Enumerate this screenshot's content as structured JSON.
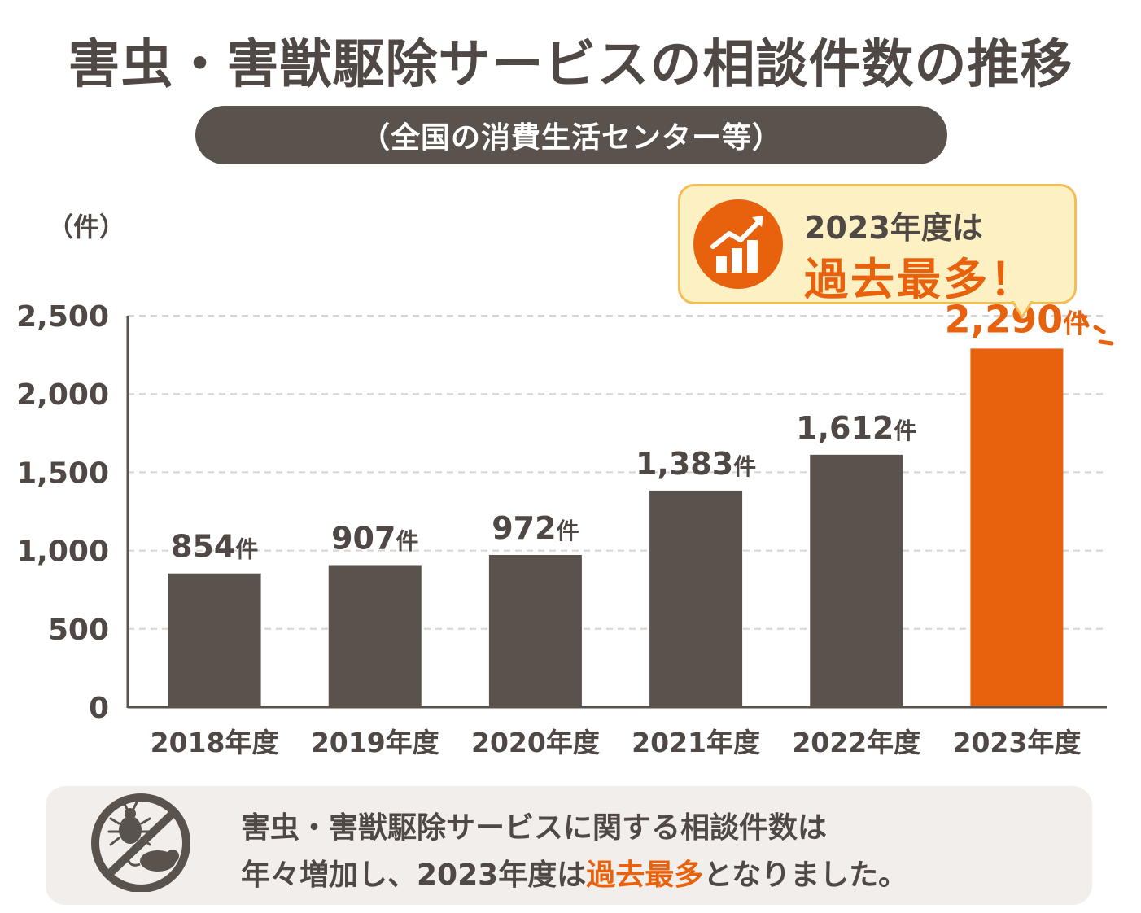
{
  "title": "害虫・害獣駆除サービスの相談件数の推移",
  "subtitle": "（全国の消費生活センター等）",
  "callout": {
    "line1": "2023年度は",
    "line2": "過去最多！",
    "icon": "rising-bar-chart-icon"
  },
  "footer": {
    "line1": "害虫・害獣駆除サービスに関する相談件数は",
    "line2_prefix": "年々増加し、2023年度は",
    "line2_highlight": "過去最多",
    "line2_suffix": "となりました。",
    "icon": "no-pests-icon"
  },
  "colors": {
    "bar": "#5a524d",
    "highlight_bar": "#e8620d",
    "text": "#4f4844",
    "grid": "#d8d4d1"
  },
  "chart_data": {
    "type": "bar",
    "unit_label": "（件）",
    "categories": [
      "2018年度",
      "2019年度",
      "2020年度",
      "2021年度",
      "2022年度",
      "2023年度"
    ],
    "values": [
      854,
      907,
      972,
      1383,
      1612,
      2290
    ],
    "data_labels": [
      "854",
      "907",
      "972",
      "1,383",
      "1,612",
      "2,290"
    ],
    "data_label_unit": "件",
    "highlight_index": 5,
    "ylim": [
      0,
      2500
    ],
    "yticks": [
      0,
      500,
      1000,
      1500,
      2000,
      2500
    ],
    "ytick_labels": [
      "0",
      "500",
      "1,000",
      "1,500",
      "2,000",
      "2,500"
    ],
    "grid": true
  }
}
